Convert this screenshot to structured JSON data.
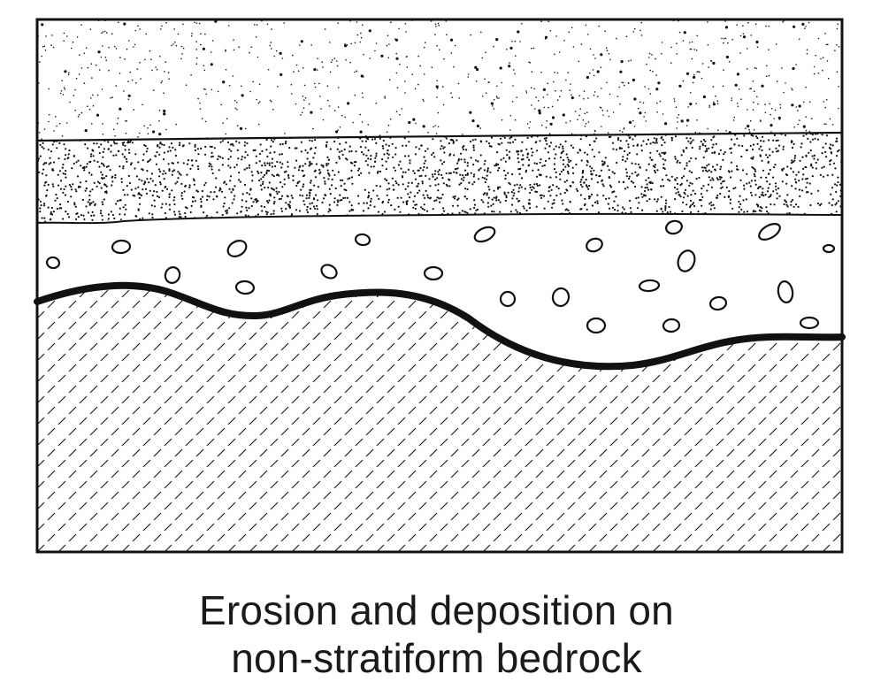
{
  "caption": {
    "line1": "Erosion and deposition on",
    "line2": "non-stratiform bedrock"
  },
  "colors": {
    "ink": "#111111",
    "paper": "#ffffff"
  },
  "layers": [
    {
      "key": "sparse-sand",
      "pattern": "sparse stipple"
    },
    {
      "key": "fine-sand",
      "pattern": "dense stipple"
    },
    {
      "key": "gravel",
      "pattern": "pebbles"
    },
    {
      "key": "bedrock",
      "pattern": "crosshatch dashes"
    }
  ],
  "contacts": [
    {
      "key": "upper-contact",
      "style": "thin"
    },
    {
      "key": "middle-contact",
      "style": "thin"
    },
    {
      "key": "erosion-surface",
      "style": "bold"
    }
  ]
}
